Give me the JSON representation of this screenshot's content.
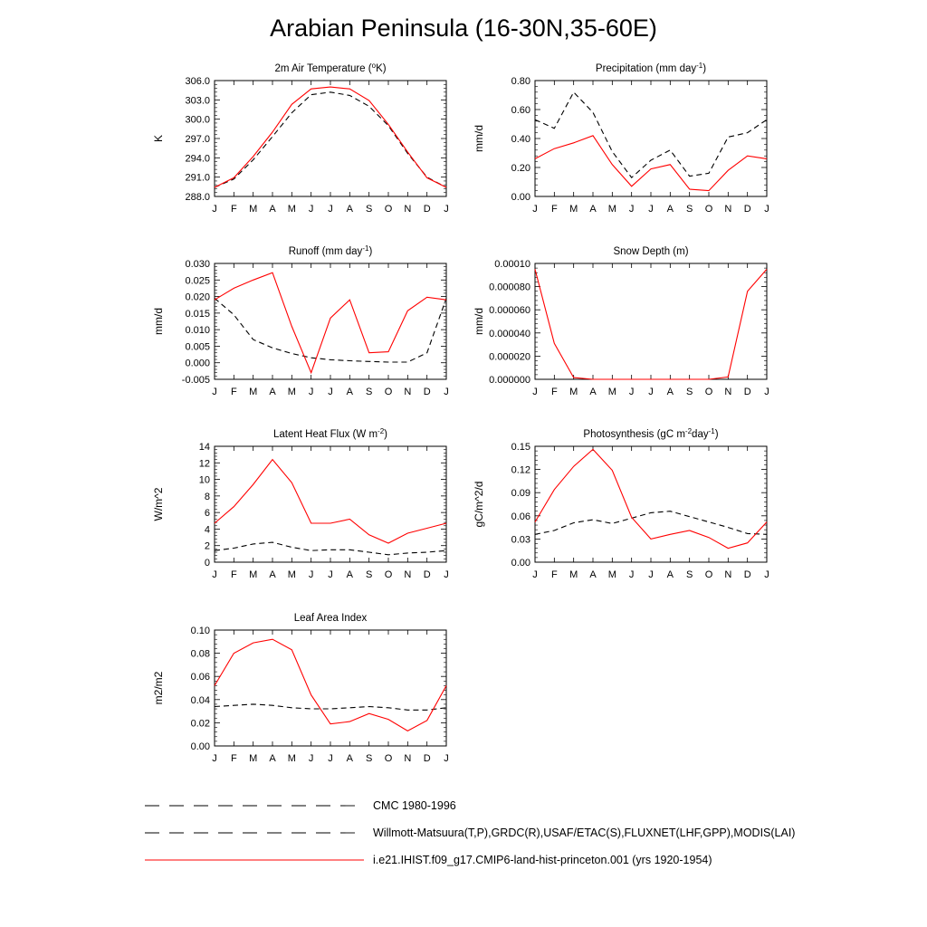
{
  "page_title": "Arabian Peninsula (16-30N,35-60E)",
  "colors": {
    "model": "#ff0000",
    "obs": "#000000",
    "obs_alt": "#0000ff"
  },
  "legend": [
    {
      "label": "CMC 1980-1996",
      "style": "dashed",
      "color": "#000000"
    },
    {
      "label": "Willmott-Matsuura(T,P),GRDC(R),USAF/ETAC(S),FLUXNET(LHF,GPP),MODIS(LAI)",
      "style": "dashed",
      "color": "#000000"
    },
    {
      "label": "i.e21.IHIST.f09_g17.CMIP6-land-hist-princeton.001 (yrs 1920-1954)",
      "style": "solid",
      "color": "#ff0000"
    }
  ],
  "chart_data": [
    {
      "type": "line",
      "title": "2m Air Temperature (",
      "title_sup": "o",
      "title_end": "K)",
      "ylabel": "K",
      "categories": [
        "J",
        "F",
        "M",
        "A",
        "M",
        "J",
        "J",
        "A",
        "S",
        "O",
        "N",
        "D",
        "J"
      ],
      "ylim": [
        288.0,
        306.0
      ],
      "yticks": [
        288.0,
        291.0,
        294.0,
        297.0,
        300.0,
        303.0,
        306.0
      ],
      "ytick_labels": [
        "288.0",
        "291.0",
        "294.0",
        "297.0",
        "300.0",
        "303.0",
        "306.0"
      ],
      "series": [
        {
          "role": "obs",
          "style": "dashed",
          "values": [
            289.4,
            290.7,
            293.7,
            297.3,
            301.0,
            303.8,
            304.2,
            303.7,
            302.0,
            299.0,
            294.7,
            291.0,
            289.4
          ]
        },
        {
          "role": "model",
          "style": "solid",
          "values": [
            289.4,
            290.9,
            294.2,
            298.0,
            302.3,
            304.7,
            305.0,
            304.7,
            302.9,
            299.2,
            294.9,
            290.9,
            289.4
          ]
        }
      ]
    },
    {
      "type": "line",
      "title": "Precipitation (mm day",
      "title_sup": "-1",
      "title_end": ")",
      "ylabel": "mm/d",
      "categories": [
        "J",
        "F",
        "M",
        "A",
        "M",
        "J",
        "J",
        "A",
        "S",
        "O",
        "N",
        "D",
        "J"
      ],
      "ylim": [
        0.0,
        0.8
      ],
      "yticks": [
        0.0,
        0.2,
        0.4,
        0.6,
        0.8
      ],
      "ytick_labels": [
        "0.00",
        "0.20",
        "0.40",
        "0.60",
        "0.80"
      ],
      "series": [
        {
          "role": "obs",
          "style": "dashed",
          "values": [
            0.53,
            0.47,
            0.72,
            0.58,
            0.31,
            0.13,
            0.25,
            0.32,
            0.14,
            0.16,
            0.41,
            0.44,
            0.53
          ]
        },
        {
          "role": "model",
          "style": "solid",
          "values": [
            0.26,
            0.33,
            0.37,
            0.42,
            0.22,
            0.07,
            0.19,
            0.22,
            0.05,
            0.04,
            0.18,
            0.28,
            0.26
          ]
        }
      ]
    },
    {
      "type": "line",
      "title": "Runoff (mm day",
      "title_sup": "-1",
      "title_end": ")",
      "ylabel": "mm/d",
      "categories": [
        "J",
        "F",
        "M",
        "A",
        "M",
        "J",
        "J",
        "A",
        "S",
        "O",
        "N",
        "D",
        "J"
      ],
      "ylim": [
        -0.005,
        0.03
      ],
      "yticks": [
        -0.005,
        0.0,
        0.005,
        0.01,
        0.015,
        0.02,
        0.025,
        0.03
      ],
      "ytick_labels": [
        "-0.005",
        "0.000",
        "0.005",
        "0.010",
        "0.015",
        "0.020",
        "0.025",
        "0.030"
      ],
      "series": [
        {
          "role": "obs",
          "style": "dashed",
          "values": [
            0.0195,
            0.0145,
            0.007,
            0.0045,
            0.0028,
            0.0015,
            0.0009,
            0.0006,
            0.0004,
            0.0002,
            0.0002,
            0.003,
            0.0195
          ]
        },
        {
          "role": "model",
          "style": "solid",
          "values": [
            0.019,
            0.0225,
            0.025,
            0.0272,
            0.011,
            -0.003,
            0.0135,
            0.019,
            0.003,
            0.0033,
            0.0157,
            0.0198,
            0.019
          ]
        }
      ]
    },
    {
      "type": "line",
      "title": "Snow Depth (m)",
      "title_sup": "",
      "title_end": "",
      "ylabel": "mm/d",
      "categories": [
        "J",
        "F",
        "M",
        "A",
        "M",
        "J",
        "J",
        "A",
        "S",
        "O",
        "N",
        "D",
        "J"
      ],
      "ylim": [
        0.0,
        0.0001
      ],
      "yticks": [
        0.0,
        2e-05,
        4e-05,
        6e-05,
        8e-05,
        0.0001
      ],
      "ytick_labels": [
        "0.000000",
        "0.000020",
        "0.000040",
        "0.000060",
        "0.000080",
        "0.00010"
      ],
      "series": [
        {
          "role": "obs",
          "style": "dashed",
          "values": [
            0,
            0,
            0,
            0,
            0,
            0,
            0,
            0,
            0,
            0,
            0,
            0,
            0
          ]
        },
        {
          "role": "model",
          "style": "solid",
          "values": [
            9.5e-05,
            3.1e-05,
            1.5e-06,
            0,
            0,
            0,
            0,
            0,
            0,
            0,
            2e-06,
            7.6e-05,
            9.5e-05
          ]
        }
      ]
    },
    {
      "type": "line",
      "title": "Latent Heat Flux (W m",
      "title_sup": "-2",
      "title_end": ")",
      "ylabel": "W/m^2",
      "categories": [
        "J",
        "F",
        "M",
        "A",
        "M",
        "J",
        "J",
        "A",
        "S",
        "O",
        "N",
        "D",
        "J"
      ],
      "ylim": [
        0,
        14
      ],
      "yticks": [
        0,
        2,
        4,
        6,
        8,
        10,
        12,
        14
      ],
      "ytick_labels": [
        "0",
        "2",
        "4",
        "6",
        "8",
        "10",
        "12",
        "14"
      ],
      "series": [
        {
          "role": "obs",
          "style": "dashed",
          "values": [
            1.4,
            1.7,
            2.2,
            2.4,
            1.8,
            1.4,
            1.5,
            1.5,
            1.2,
            0.9,
            1.1,
            1.2,
            1.4
          ]
        },
        {
          "role": "model",
          "style": "solid",
          "values": [
            4.7,
            6.7,
            9.4,
            12.4,
            9.6,
            4.7,
            4.7,
            5.2,
            3.3,
            2.3,
            3.5,
            4.1,
            4.7
          ]
        }
      ]
    },
    {
      "type": "line",
      "title": "Photosynthesis (gC m",
      "title_sup": "-2",
      "title_end": "day",
      "title_sup2": "-1",
      "title_end2": ")",
      "ylabel": "gC/m^2/d",
      "categories": [
        "J",
        "F",
        "M",
        "A",
        "M",
        "J",
        "J",
        "A",
        "S",
        "O",
        "N",
        "D",
        "J"
      ],
      "ylim": [
        0,
        0.15
      ],
      "yticks": [
        0,
        0.03,
        0.06,
        0.09,
        0.12,
        0.15
      ],
      "ytick_labels": [
        "0.00",
        "0.03",
        "0.06",
        "0.09",
        "0.12",
        "0.15"
      ],
      "series": [
        {
          "role": "obs",
          "style": "dashed",
          "values": [
            0.036,
            0.041,
            0.051,
            0.055,
            0.05,
            0.057,
            0.064,
            0.066,
            0.059,
            0.052,
            0.045,
            0.037,
            0.036
          ]
        },
        {
          "role": "model",
          "style": "solid",
          "values": [
            0.052,
            0.094,
            0.124,
            0.146,
            0.119,
            0.058,
            0.03,
            0.036,
            0.041,
            0.032,
            0.018,
            0.025,
            0.052
          ]
        }
      ]
    },
    {
      "type": "line",
      "title": "Leaf Area Index",
      "title_sup": "",
      "title_end": "",
      "ylabel": "m2/m2",
      "categories": [
        "J",
        "F",
        "M",
        "A",
        "M",
        "J",
        "J",
        "A",
        "S",
        "O",
        "N",
        "D",
        "J"
      ],
      "ylim": [
        0,
        0.1
      ],
      "yticks": [
        0,
        0.02,
        0.04,
        0.06,
        0.08,
        0.1
      ],
      "ytick_labels": [
        "0.00",
        "0.02",
        "0.04",
        "0.06",
        "0.08",
        "0.10"
      ],
      "series": [
        {
          "role": "obs",
          "style": "dashed",
          "values": [
            0.034,
            0.035,
            0.036,
            0.035,
            0.033,
            0.032,
            0.032,
            0.033,
            0.034,
            0.033,
            0.031,
            0.031,
            0.033
          ]
        },
        {
          "role": "model",
          "style": "solid",
          "values": [
            0.052,
            0.08,
            0.089,
            0.092,
            0.083,
            0.044,
            0.019,
            0.021,
            0.028,
            0.023,
            0.013,
            0.022,
            0.052
          ]
        }
      ]
    }
  ]
}
